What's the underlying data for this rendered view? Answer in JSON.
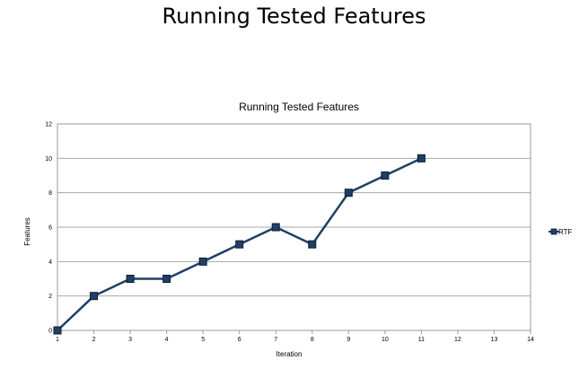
{
  "slide": {
    "title": "Running Tested Features"
  },
  "chart_data": {
    "type": "line",
    "title": "Running Tested Features",
    "xlabel": "Iteration",
    "ylabel": "Features",
    "x": [
      1,
      2,
      3,
      4,
      5,
      6,
      7,
      8,
      9,
      10,
      11
    ],
    "xlim": [
      1,
      14
    ],
    "xticks": [
      1,
      2,
      3,
      4,
      5,
      6,
      7,
      8,
      9,
      10,
      11,
      12,
      13,
      14
    ],
    "ylim": [
      0,
      12
    ],
    "yticks": [
      0,
      2,
      4,
      6,
      8,
      10,
      12
    ],
    "grid": "horizontal",
    "legend": "right",
    "series": [
      {
        "name": "RTF",
        "color": "#1f3f66",
        "values": [
          0,
          2,
          3,
          3,
          4,
          5,
          6,
          5,
          8,
          9,
          10
        ]
      }
    ]
  }
}
